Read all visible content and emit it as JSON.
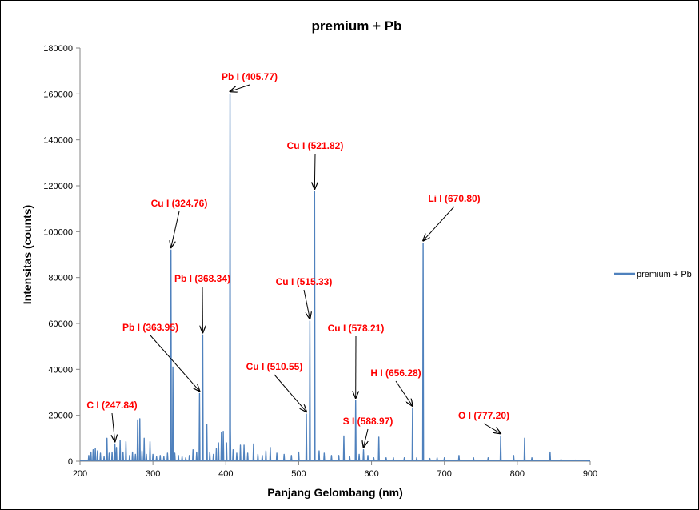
{
  "chart_data": {
    "type": "line",
    "title": "premium +  Pb",
    "xlabel": "Panjang Gelombang (nm)",
    "ylabel": "Intensitas (counts)",
    "xlim": [
      200,
      900
    ],
    "ylim": [
      0,
      180000
    ],
    "x_ticks": [
      200,
      300,
      400,
      500,
      600,
      700,
      800,
      900
    ],
    "y_ticks": [
      0,
      20000,
      40000,
      60000,
      80000,
      100000,
      120000,
      140000,
      160000,
      180000
    ],
    "grid": false,
    "legend_position": "right",
    "series": [
      {
        "name": "premium +  Pb",
        "color": "#4f81bd",
        "peaks": [
          [
            212,
            2500
          ],
          [
            215,
            4000
          ],
          [
            218,
            5000
          ],
          [
            221,
            5500
          ],
          [
            224,
            4500
          ],
          [
            228,
            3500
          ],
          [
            233,
            2000
          ],
          [
            237,
            10000
          ],
          [
            240,
            3500
          ],
          [
            244,
            4000
          ],
          [
            247.84,
            7500
          ],
          [
            250,
            6000
          ],
          [
            255,
            9000
          ],
          [
            259,
            4000
          ],
          [
            263,
            8500
          ],
          [
            268,
            2500
          ],
          [
            272,
            4000
          ],
          [
            276,
            3000
          ],
          [
            279,
            18000
          ],
          [
            282,
            18500
          ],
          [
            285,
            4500
          ],
          [
            288,
            10000
          ],
          [
            291,
            3000
          ],
          [
            296,
            8500
          ],
          [
            300,
            3000
          ],
          [
            305,
            2000
          ],
          [
            310,
            2500
          ],
          [
            315,
            2000
          ],
          [
            320,
            3500
          ],
          [
            324.76,
            92000
          ],
          [
            327.4,
            41000
          ],
          [
            330,
            3500
          ],
          [
            335,
            2500
          ],
          [
            340,
            2000
          ],
          [
            345,
            1500
          ],
          [
            350,
            2500
          ],
          [
            355,
            5000
          ],
          [
            360,
            4000
          ],
          [
            363.95,
            29500
          ],
          [
            368.34,
            55000
          ],
          [
            373.99,
            16000
          ],
          [
            378,
            4000
          ],
          [
            383,
            3000
          ],
          [
            387,
            5500
          ],
          [
            390,
            8000
          ],
          [
            394,
            12500
          ],
          [
            396.5,
            13000
          ],
          [
            401,
            8000
          ],
          [
            405.77,
            160000
          ],
          [
            406.2,
            17500
          ],
          [
            410,
            5000
          ],
          [
            415,
            3500
          ],
          [
            420,
            7000
          ],
          [
            425,
            7000
          ],
          [
            430,
            3500
          ],
          [
            438,
            7500
          ],
          [
            444,
            3000
          ],
          [
            450,
            2500
          ],
          [
            455,
            4500
          ],
          [
            461,
            6000
          ],
          [
            470,
            3500
          ],
          [
            480,
            3000
          ],
          [
            490,
            2500
          ],
          [
            500,
            4000
          ],
          [
            510.55,
            20500
          ],
          [
            515.33,
            61000
          ],
          [
            521.82,
            117500
          ],
          [
            528,
            4500
          ],
          [
            535,
            3500
          ],
          [
            545,
            2500
          ],
          [
            555,
            2500
          ],
          [
            562,
            11000
          ],
          [
            570,
            2000
          ],
          [
            578.21,
            26500
          ],
          [
            583,
            3000
          ],
          [
            588.97,
            5000
          ],
          [
            595,
            2500
          ],
          [
            603,
            1500
          ],
          [
            610,
            10500
          ],
          [
            620,
            1500
          ],
          [
            630,
            1500
          ],
          [
            645,
            1500
          ],
          [
            656.28,
            23000
          ],
          [
            662,
            1500
          ],
          [
            670.8,
            95000
          ],
          [
            680,
            1200
          ],
          [
            690,
            1500
          ],
          [
            700,
            1500
          ],
          [
            720,
            2500
          ],
          [
            740,
            1500
          ],
          [
            760,
            1500
          ],
          [
            777.2,
            11000
          ],
          [
            795,
            2500
          ],
          [
            810,
            10000
          ],
          [
            820,
            1500
          ],
          [
            845,
            4000
          ],
          [
            860,
            800
          ],
          [
            880,
            500
          ],
          [
            895,
            300
          ]
        ]
      }
    ],
    "annotations": [
      {
        "text": "Pb I (405.77)",
        "x": 405.77,
        "y": 160000
      },
      {
        "text": "Cu I (521.82)",
        "x": 521.82,
        "y": 117500
      },
      {
        "text": "Li I (670.80)",
        "x": 670.8,
        "y": 95000
      },
      {
        "text": "Cu I (324.76)",
        "x": 324.76,
        "y": 92000
      },
      {
        "text": "Pb I (368.34)",
        "x": 368.34,
        "y": 55000
      },
      {
        "text": "Cu I (515.33)",
        "x": 515.33,
        "y": 61000
      },
      {
        "text": "Pb I (363.95)",
        "x": 363.95,
        "y": 29500
      },
      {
        "text": "Cu I (578.21)",
        "x": 578.21,
        "y": 26500
      },
      {
        "text": "Cu I (510.55)",
        "x": 510.55,
        "y": 20500
      },
      {
        "text": "H I (656.28)",
        "x": 656.28,
        "y": 23000
      },
      {
        "text": "C I (247.84)",
        "x": 247.84,
        "y": 7500
      },
      {
        "text": "S I (588.97)",
        "x": 588.97,
        "y": 5000
      },
      {
        "text": "O I (777.20)",
        "x": 777.2,
        "y": 11000
      }
    ],
    "annotation_color": "#ff0000"
  }
}
